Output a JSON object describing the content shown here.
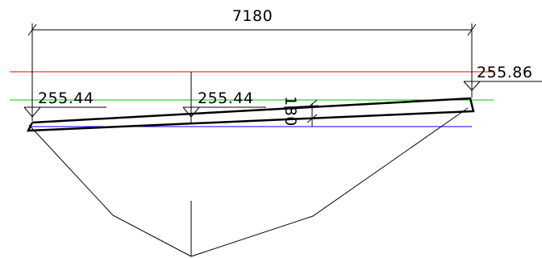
{
  "dimensions": {
    "overall_width": "7180",
    "thickness": "180"
  },
  "levels": {
    "left": "255.44",
    "middle": "255.44",
    "right": "255.86"
  },
  "colors": {
    "background": "#ffffff",
    "linework": "#000000",
    "red_reference_line": "#ff0000",
    "green_reference_line": "#00c000",
    "blue_reference_line": "#0000ff"
  }
}
